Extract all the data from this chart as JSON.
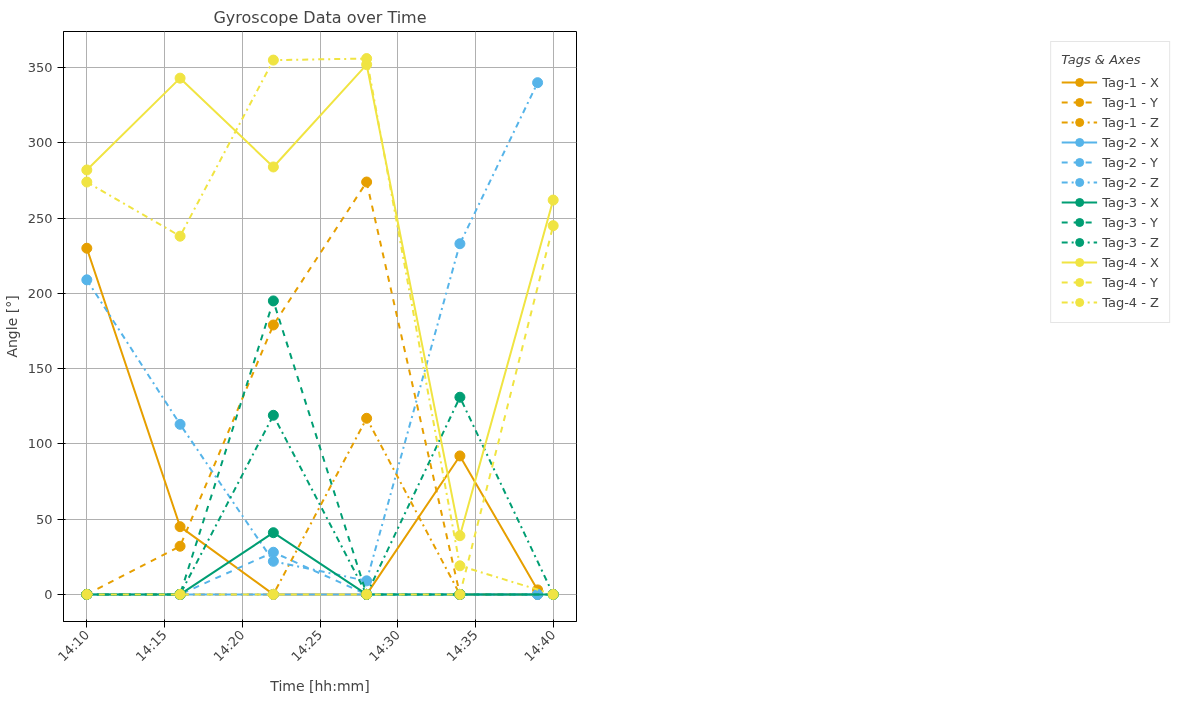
{
  "chart_data": {
    "type": "line",
    "title": "Gyroscope Data over Time",
    "xlabel": "Time [hh:mm]",
    "ylabel": "Angle [°]",
    "legend_title": "Tags & Axes",
    "xlim": [
      14.1417,
      14.6917
    ],
    "xticks": [
      {
        "value": 14.1667,
        "label": "14:10"
      },
      {
        "value": 14.25,
        "label": "14:15"
      },
      {
        "value": 14.3333,
        "label": "14:20"
      },
      {
        "value": 14.4167,
        "label": "14:25"
      },
      {
        "value": 14.5,
        "label": "14:30"
      },
      {
        "value": 14.5833,
        "label": "14:35"
      },
      {
        "value": 14.6667,
        "label": "14:40"
      }
    ],
    "ylim": [
      -18,
      374
    ],
    "yticks": [
      0,
      50,
      100,
      150,
      200,
      250,
      300,
      350
    ],
    "grid": true,
    "legend": "right",
    "marker": "circle",
    "series": [
      {
        "name": "Tag-1 - X",
        "color": "#e69f00",
        "line_style": "solid",
        "x": [
          14.1667,
          14.2667,
          14.3667,
          14.4667,
          14.5667,
          14.65
        ],
        "values": [
          230,
          45,
          0,
          0,
          92,
          3
        ]
      },
      {
        "name": "Tag-1 - Y",
        "color": "#e69f00",
        "line_style": "dashed",
        "x": [
          14.1667,
          14.2667,
          14.3667,
          14.4667,
          14.5667,
          14.65
        ],
        "values": [
          0,
          32,
          179,
          274,
          0,
          0
        ]
      },
      {
        "name": "Tag-1 - Z",
        "color": "#e69f00",
        "line_style": "dashdot",
        "x": [
          14.1667,
          14.2667,
          14.3667,
          14.4667,
          14.5667,
          14.65
        ],
        "values": [
          0,
          0,
          0,
          117,
          0,
          0
        ]
      },
      {
        "name": "Tag-2 - X",
        "color": "#56b4e9",
        "line_style": "solid",
        "x": [
          14.1667,
          14.2667,
          14.3667,
          14.4667,
          14.5667,
          14.65
        ],
        "values": [
          0,
          0,
          0,
          0,
          0,
          0
        ]
      },
      {
        "name": "Tag-2 - Y",
        "color": "#56b4e9",
        "line_style": "dashed",
        "x": [
          14.1667,
          14.2667,
          14.3667,
          14.4667,
          14.5667,
          14.65
        ],
        "values": [
          0,
          0,
          28,
          0,
          0,
          0
        ]
      },
      {
        "name": "Tag-2 - Z",
        "color": "#56b4e9",
        "line_style": "dashdot",
        "x": [
          14.1667,
          14.2667,
          14.3667,
          14.4667,
          14.5667,
          14.65
        ],
        "values": [
          209,
          113,
          22,
          9,
          233,
          340
        ]
      },
      {
        "name": "Tag-3 - X",
        "color": "#009e73",
        "line_style": "solid",
        "x": [
          14.1667,
          14.2667,
          14.3667,
          14.4667,
          14.5667,
          14.6667
        ],
        "values": [
          0,
          0,
          41,
          0,
          0,
          0
        ]
      },
      {
        "name": "Tag-3 - Y",
        "color": "#009e73",
        "line_style": "dashed",
        "x": [
          14.1667,
          14.2667,
          14.3667,
          14.4667,
          14.5667,
          14.6667
        ],
        "values": [
          0,
          0,
          195,
          0,
          0,
          0
        ]
      },
      {
        "name": "Tag-3 - Z",
        "color": "#009e73",
        "line_style": "dashdot",
        "x": [
          14.1667,
          14.2667,
          14.3667,
          14.4667,
          14.5667,
          14.6667
        ],
        "values": [
          0,
          0,
          119,
          0,
          131,
          0
        ]
      },
      {
        "name": "Tag-4 - X",
        "color": "#f0e442",
        "line_style": "solid",
        "x": [
          14.1667,
          14.2667,
          14.3667,
          14.4667,
          14.5667,
          14.6667
        ],
        "values": [
          282,
          343,
          284,
          352,
          39,
          262
        ]
      },
      {
        "name": "Tag-4 - Y",
        "color": "#f0e442",
        "line_style": "dashed",
        "x": [
          14.1667,
          14.2667,
          14.3667,
          14.4667,
          14.5667,
          14.6667
        ],
        "values": [
          0,
          0,
          0,
          0,
          0,
          245
        ]
      },
      {
        "name": "Tag-4 - Z",
        "color": "#f0e442",
        "line_style": "dashdot",
        "x": [
          14.1667,
          14.2667,
          14.3667,
          14.4667,
          14.5667,
          14.6667
        ],
        "values": [
          274,
          238,
          355,
          356,
          19,
          0
        ]
      }
    ]
  }
}
